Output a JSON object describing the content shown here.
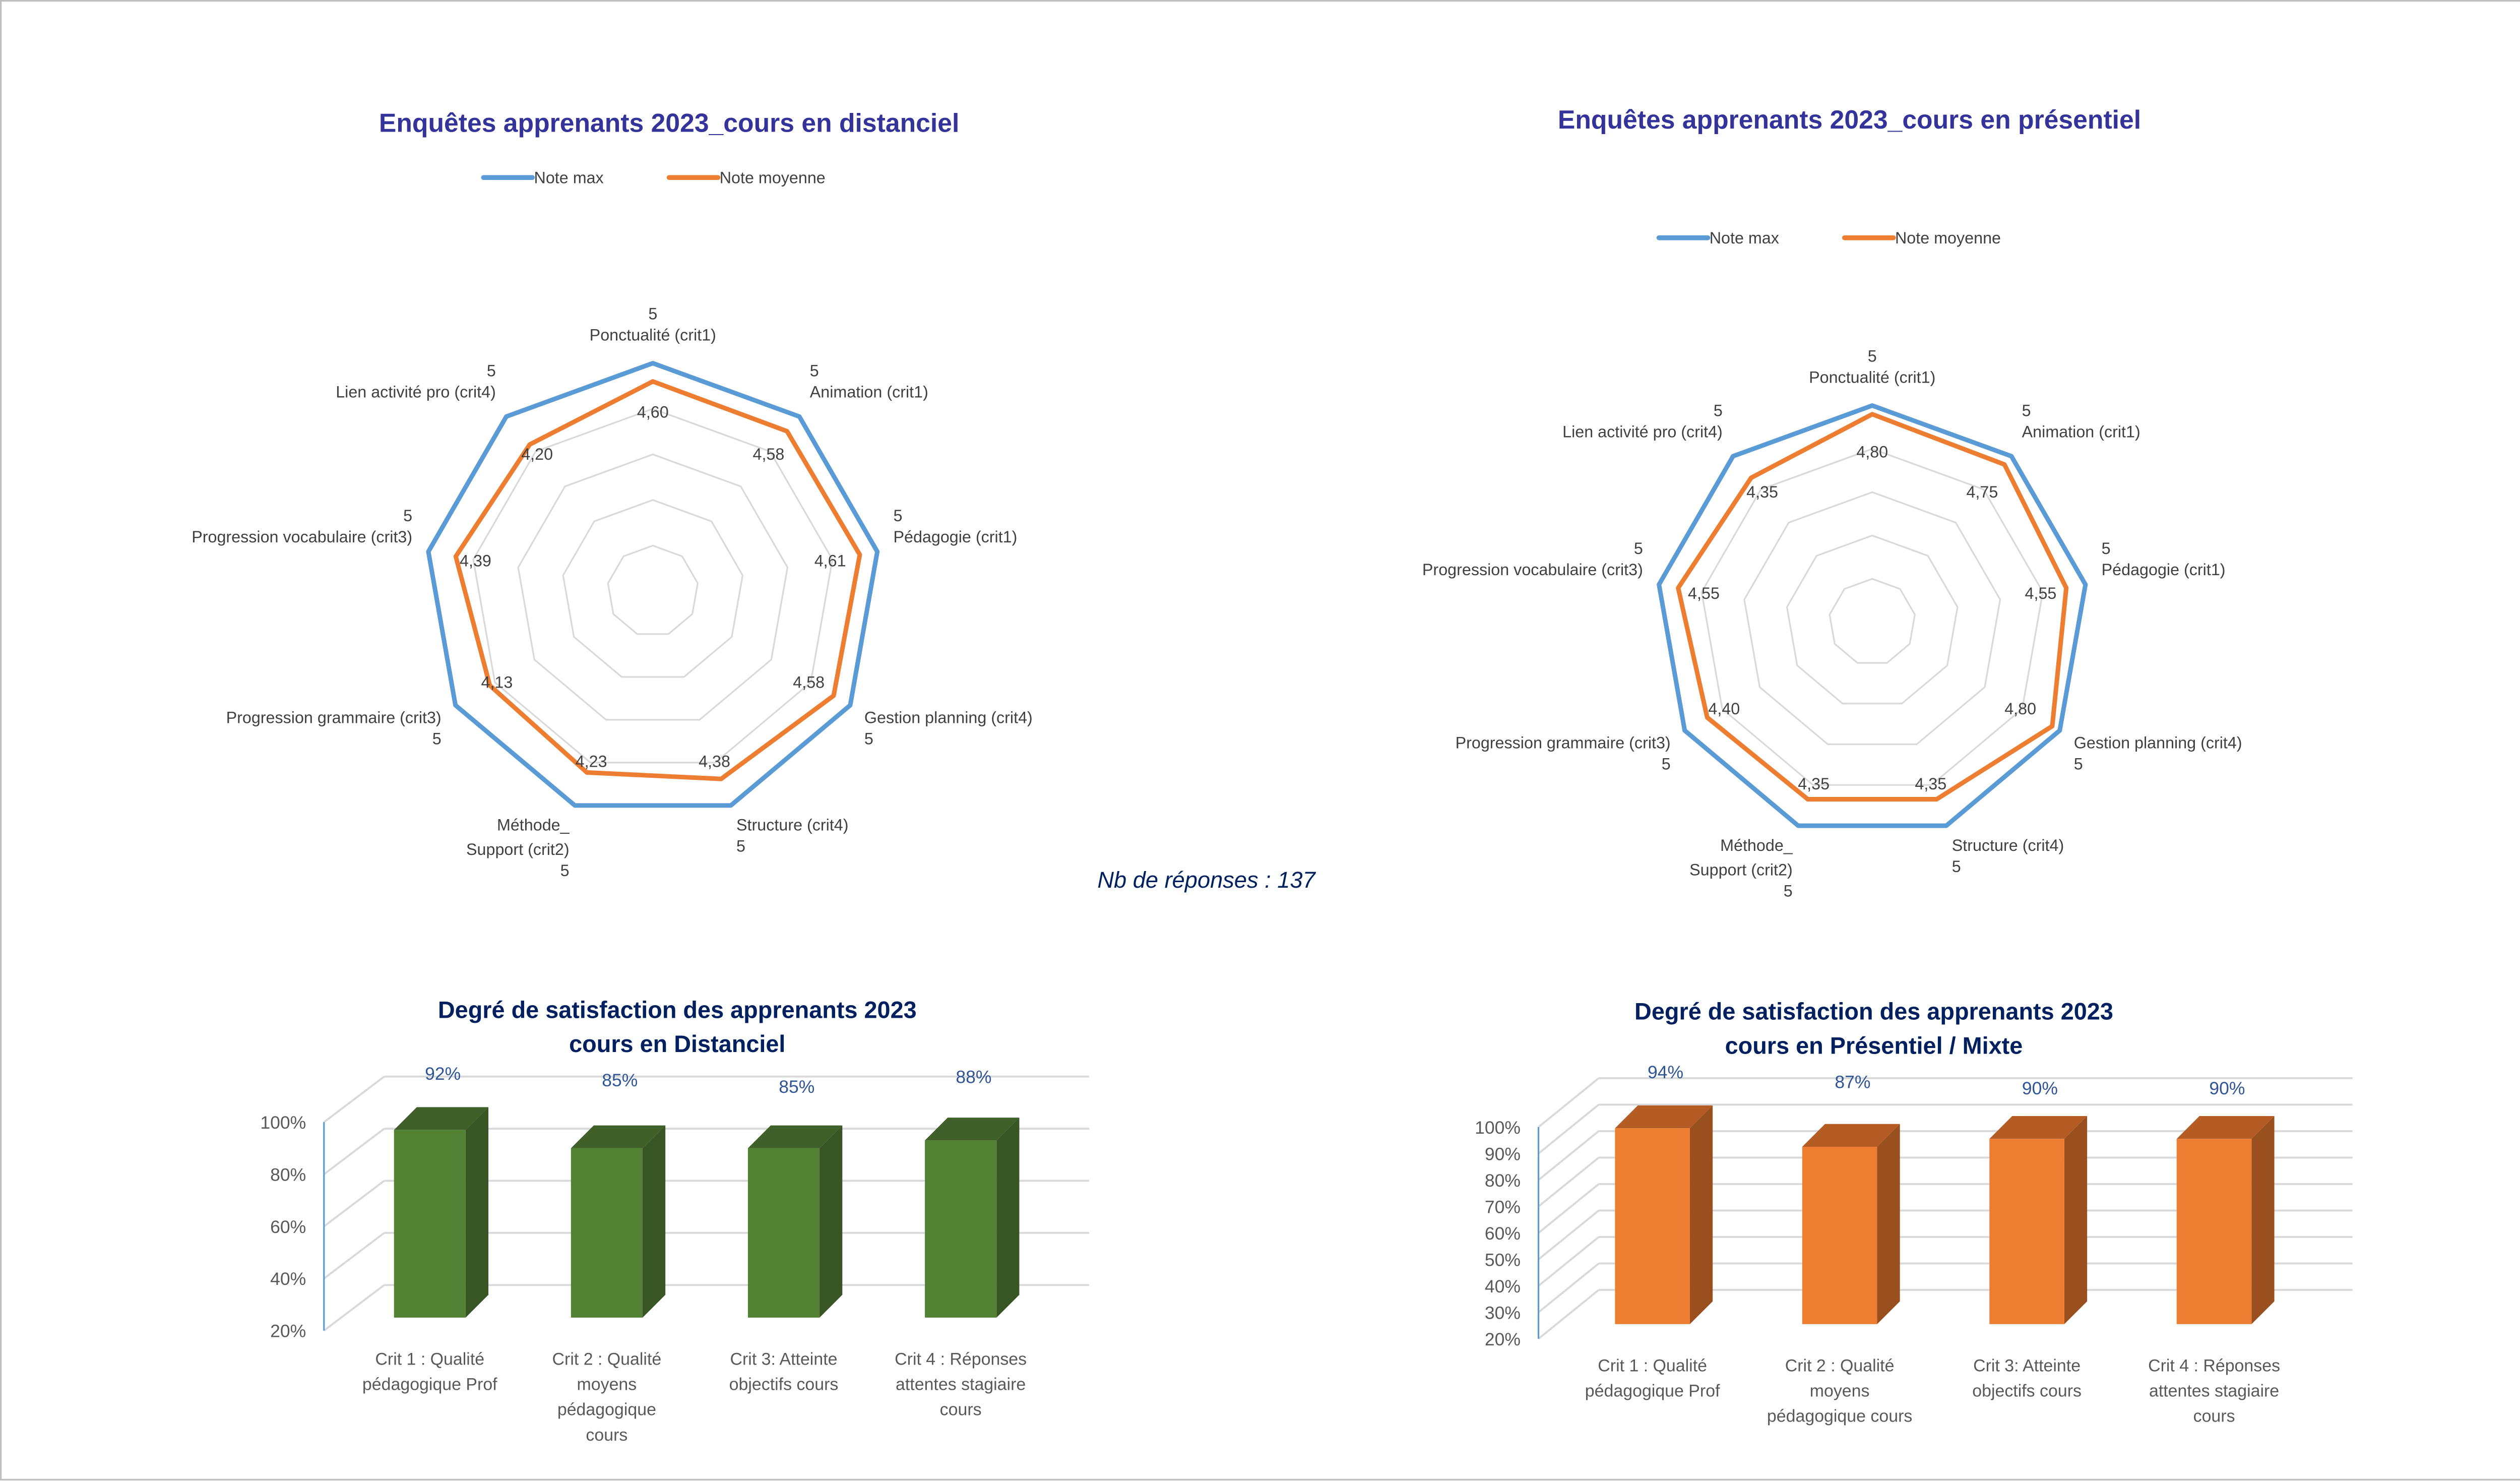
{
  "note": "Nb de réponses : 137",
  "colors": {
    "max": "#5b9bd5",
    "avg": "#ed7d31",
    "green": "#548235",
    "orange": "#ed7d31",
    "title": "#333399",
    "bar_title": "#002060",
    "data_label": "#2f5597"
  },
  "chart_data": [
    {
      "type": "radar",
      "title": "Enquêtes apprenants 2023_cours en distanciel",
      "legend": [
        "Note max",
        "Note moyenne"
      ],
      "legend_position": "top",
      "categories": [
        "Ponctualité (crit1)",
        "Animation (crit1)",
        "Pédagogie (crit1)",
        "Gestion planning (crit4)",
        "Structure (crit4)",
        "Méthode_ Support (crit2)",
        "Progression grammaire (crit3)",
        "Progression vocabulaire (crit3)",
        "Lien activité pro (crit4)"
      ],
      "series": [
        {
          "name": "Note max",
          "values": [
            5,
            5,
            5,
            5,
            5,
            5,
            5,
            5,
            5
          ],
          "labels": [
            "5",
            "5",
            "5",
            "5",
            "5",
            "5",
            "5",
            "5",
            "5"
          ]
        },
        {
          "name": "Note moyenne",
          "values": [
            4.6,
            4.58,
            4.61,
            4.58,
            4.38,
            4.23,
            4.13,
            4.39,
            4.2
          ],
          "labels": [
            "4,60",
            "4,58",
            "4,61",
            "4,58",
            "4,38",
            "4,23",
            "4,13",
            "4,39",
            "4,20"
          ]
        }
      ],
      "range": [
        0,
        5
      ]
    },
    {
      "type": "radar",
      "title": "Enquêtes apprenants 2023_cours en présentiel",
      "legend": [
        "Note max",
        "Note moyenne"
      ],
      "legend_position": "top",
      "categories": [
        "Ponctualité (crit1)",
        "Animation (crit1)",
        "Pédagogie (crit1)",
        "Gestion planning (crit4)",
        "Structure (crit4)",
        "Méthode_ Support (crit2)",
        "Progression grammaire (crit3)",
        "Progression vocabulaire (crit3)",
        "Lien activité pro (crit4)"
      ],
      "series": [
        {
          "name": "Note max",
          "values": [
            5,
            5,
            5,
            5,
            5,
            5,
            5,
            5,
            5
          ],
          "labels": [
            "5",
            "5",
            "5",
            "5",
            "5",
            "5",
            "5",
            "5",
            "5"
          ]
        },
        {
          "name": "Note moyenne",
          "values": [
            4.8,
            4.75,
            4.55,
            4.8,
            4.35,
            4.35,
            4.4,
            4.55,
            4.35
          ],
          "labels": [
            "4,80",
            "4,75",
            "4,55",
            "4,80",
            "4,35",
            "4,35",
            "4,40",
            "4,55",
            "4,35"
          ]
        }
      ],
      "range": [
        0,
        5
      ]
    },
    {
      "type": "bar",
      "title": [
        "Degré de satisfaction des apprenants 2023",
        "cours en Distanciel"
      ],
      "categories": [
        [
          "Crit 1 : Qualité",
          "pédagogique Prof"
        ],
        [
          "Crit 2 : Qualité",
          "moyens",
          "pédagogique",
          "cours"
        ],
        [
          "Crit 3: Atteinte",
          "objectifs cours"
        ],
        [
          "Crit 4 : Réponses",
          "attentes stagiaire",
          "cours"
        ]
      ],
      "values": [
        92,
        85,
        85,
        88
      ],
      "labels": [
        "92%",
        "85%",
        "85%",
        "88%"
      ],
      "yticks": [
        "100%",
        "80%",
        "60%",
        "40%",
        "20%"
      ],
      "ylim": [
        20,
        100
      ]
    },
    {
      "type": "bar",
      "title": [
        "Degré de satisfaction des apprenants 2023",
        "cours en Présentiel / Mixte"
      ],
      "categories": [
        [
          "Crit 1 : Qualité",
          "pédagogique Prof"
        ],
        [
          "Crit 2 : Qualité",
          "moyens",
          "pédagogique cours"
        ],
        [
          "Crit 3: Atteinte",
          "objectifs cours"
        ],
        [
          "Crit 4 : Réponses",
          "attentes stagiaire",
          "cours"
        ]
      ],
      "values": [
        94,
        87,
        90,
        90
      ],
      "labels": [
        "94%",
        "87%",
        "90%",
        "90%"
      ],
      "yticks": [
        "100%",
        "90%",
        "80%",
        "70%",
        "60%",
        "50%",
        "40%",
        "30%",
        "20%"
      ],
      "ylim": [
        20,
        100
      ]
    }
  ]
}
